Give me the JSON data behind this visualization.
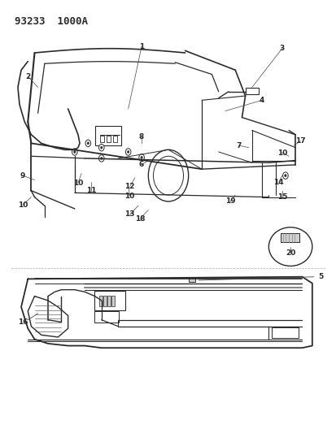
{
  "header_text": "93233  1000A",
  "bg_color": "#ffffff",
  "line_color": "#2a2a2a",
  "figsize": [
    4.14,
    5.33
  ],
  "dpi": 100
}
